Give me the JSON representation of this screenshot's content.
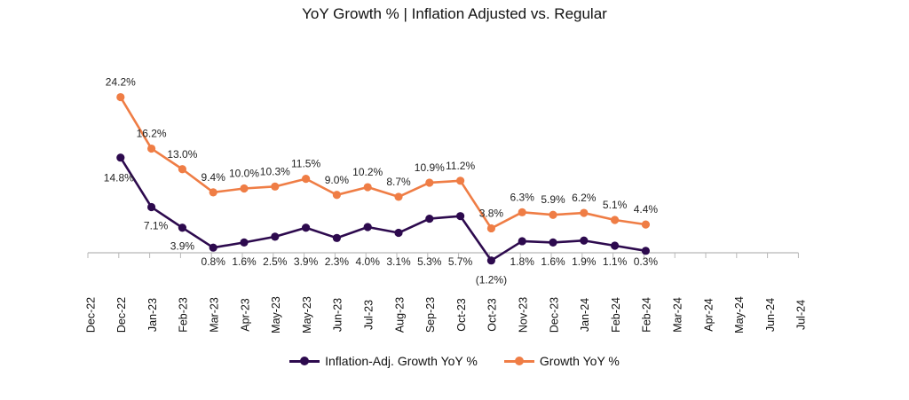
{
  "chart_data": {
    "type": "line",
    "title": "YoY Growth % | Inflation Adjusted vs. Regular",
    "x_ticks": [
      "Dec-22",
      "Dec-22",
      "Jan-23",
      "Feb-23",
      "Mar-23",
      "Apr-23",
      "May-23",
      "May-23",
      "Jun-23",
      "Jul-23",
      "Aug-23",
      "Sep-23",
      "Oct-23",
      "Oct-23",
      "Nov-23",
      "Dec-23",
      "Jan-24",
      "Feb-24",
      "Feb-24",
      "Mar-24",
      "Apr-24",
      "May-24",
      "Jun-24",
      "Jul-24"
    ],
    "series": [
      {
        "name": "Inflation-Adj. Growth YoY %",
        "color": "#2d0a4e",
        "values": [
          14.8,
          7.1,
          3.9,
          0.8,
          1.6,
          2.5,
          3.9,
          2.3,
          4.0,
          3.1,
          5.3,
          5.7,
          -1.2,
          1.8,
          1.6,
          1.9,
          1.1,
          0.3
        ],
        "labels": [
          "14.8%",
          "7.1%",
          "3.9%",
          "0.8%",
          "1.6%",
          "2.5%",
          "3.9%",
          "2.3%",
          "4.0%",
          "3.1%",
          "5.3%",
          "5.7%",
          "(1.2%)",
          "1.8%",
          "1.6%",
          "1.9%",
          "1.1%",
          "0.3%"
        ]
      },
      {
        "name": "Growth YoY %",
        "color": "#ef7d45",
        "values": [
          24.2,
          16.2,
          13.0,
          9.4,
          10.0,
          10.3,
          11.5,
          9.0,
          10.2,
          8.7,
          10.9,
          11.2,
          3.8,
          6.3,
          5.9,
          6.2,
          5.1,
          4.4
        ],
        "labels": [
          "24.2%",
          "16.2%",
          "13.0%",
          "9.4%",
          "10.0%",
          "10.3%",
          "11.5%",
          "9.0%",
          "10.2%",
          "8.7%",
          "10.9%",
          "11.2%",
          "3.8%",
          "6.3%",
          "5.9%",
          "6.2%",
          "5.1%",
          "4.4%"
        ]
      }
    ],
    "grid": false,
    "legend_position": "bottom"
  }
}
